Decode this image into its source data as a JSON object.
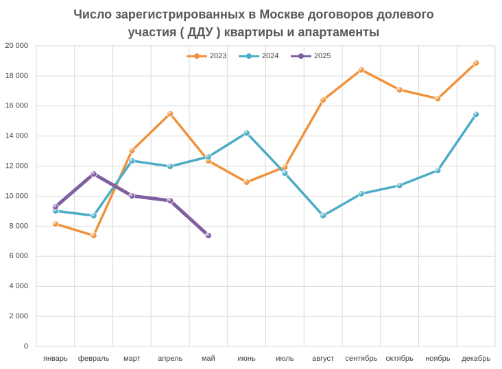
{
  "chart_data": {
    "type": "line",
    "title": "Число зарегистрированных в Москве договоров долевого участия ( ДДУ ) квартиры и апартаменты",
    "categories": [
      "январь",
      "февраль",
      "март",
      "апрель",
      "май",
      "июнь",
      "июль",
      "август",
      "сентябрь",
      "октябрь",
      "ноябрь",
      "декабрь"
    ],
    "series": [
      {
        "name": "2023",
        "color": "#f0923c",
        "values": [
          8150,
          7380,
          13030,
          15490,
          12350,
          10930,
          11940,
          16400,
          18410,
          17080,
          16490,
          18860
        ]
      },
      {
        "name": "2024",
        "color": "#4bacc6",
        "values": [
          9020,
          8700,
          12350,
          11980,
          12620,
          14210,
          11530,
          8700,
          10160,
          10710,
          11710,
          15440
        ]
      },
      {
        "name": "2025",
        "color": "#7f5fa0",
        "values": [
          9290,
          11480,
          10020,
          9700,
          7380,
          null,
          null,
          null,
          null,
          null,
          null,
          null
        ]
      }
    ],
    "ylim": [
      0,
      20000
    ],
    "yticks": [
      0,
      {
        "value": 2000,
        "label": "2 000"
      },
      {
        "value": 4000,
        "label": "4 000"
      },
      {
        "value": 6000,
        "label": "6 000"
      },
      {
        "value": 8000,
        "label": "8 000"
      },
      {
        "value": 10000,
        "label": "10 000"
      },
      {
        "value": 12000,
        "label": "12 000"
      },
      {
        "value": 14000,
        "label": "14 000"
      },
      {
        "value": 16000,
        "label": "16 000"
      },
      {
        "value": 18000,
        "label": "18 000"
      },
      {
        "value": 20000,
        "label": "20 000"
      }
    ],
    "grid": true,
    "legend": "top"
  }
}
